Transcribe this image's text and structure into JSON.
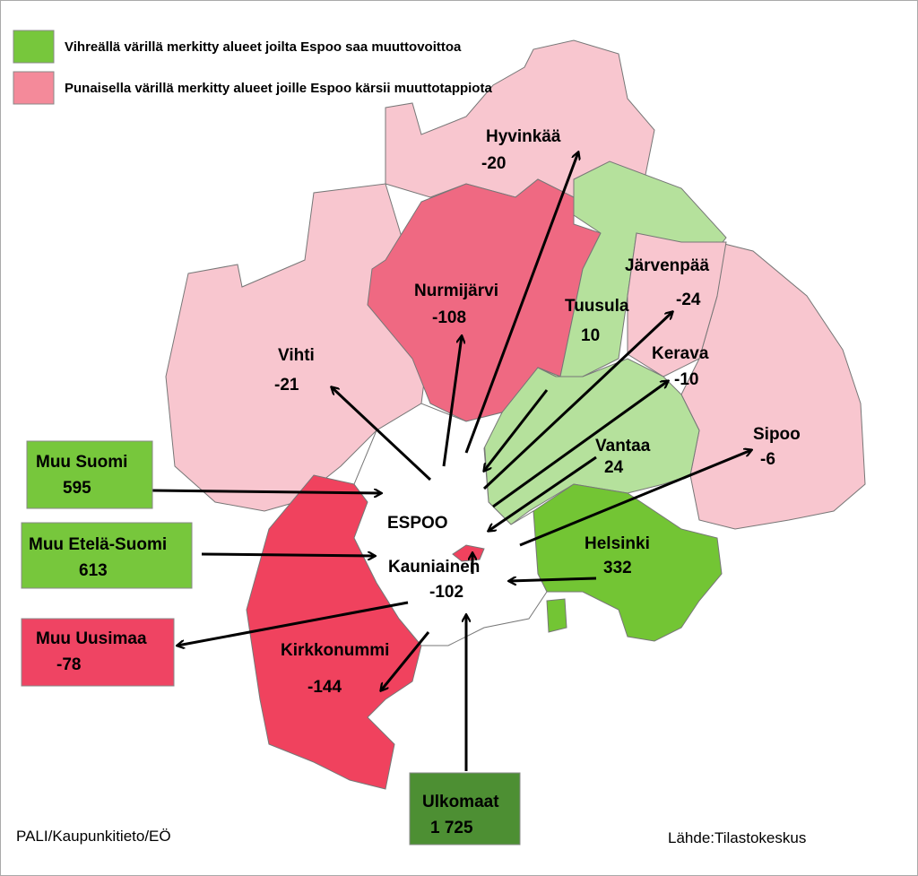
{
  "legend": [
    {
      "label": "Vihreällä värillä merkitty alueet joilta Espoo saa muuttovoittoa"
    },
    {
      "label": "Punaisella värillä merkitty alueet joille Espoo kärsii muuttotappiota"
    }
  ],
  "regions": [
    {
      "name": "Hyvinkää",
      "value": "-20"
    },
    {
      "name": "Nurmijärvi",
      "value": "-108"
    },
    {
      "name": "Vihti",
      "value": "-21"
    },
    {
      "name": "Tuusula",
      "value": "10"
    },
    {
      "name": "Järvenpää",
      "value": "-24"
    },
    {
      "name": "Kerava",
      "value": "-10"
    },
    {
      "name": "Vantaa",
      "value": "24"
    },
    {
      "name": "Sipoo",
      "value": "-6"
    },
    {
      "name": "Helsinki",
      "value": "332"
    },
    {
      "name": "Kauniainen",
      "value": "-102"
    },
    {
      "name": "Kirkkonummi",
      "value": "-144"
    }
  ],
  "center": "ESPOO",
  "boxes": [
    {
      "name": "Muu Suomi",
      "value": "595"
    },
    {
      "name": "Muu Etelä-Suomi",
      "value": "613"
    },
    {
      "name": "Muu Uusimaa",
      "value": "-78"
    },
    {
      "name": "Ulkomaat",
      "value": "1 725"
    }
  ],
  "credits": {
    "left": "PALI/Kaupunkitieto/EÖ",
    "right": "Lähde:Tilastokeskus"
  }
}
